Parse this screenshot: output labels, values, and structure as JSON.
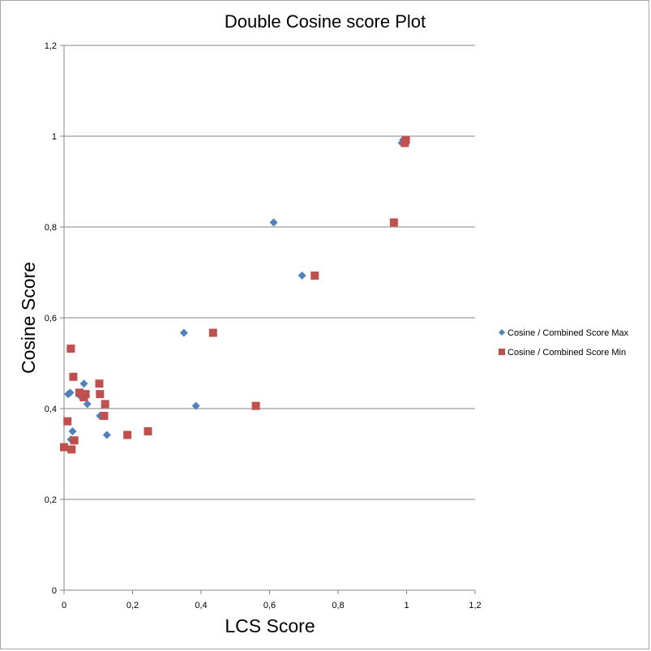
{
  "chart_data": {
    "type": "scatter",
    "title": "Double Cosine score Plot",
    "xlabel": "LCS Score",
    "ylabel": "Cosine Score",
    "xlim": [
      0,
      1.2
    ],
    "ylim": [
      0,
      1.2
    ],
    "xticks": [
      "0",
      "0,2",
      "0,4",
      "0,6",
      "0,8",
      "1",
      "1,2"
    ],
    "yticks": [
      "0",
      "0,2",
      "0,4",
      "0,6",
      "0,8",
      "1",
      "1,2"
    ],
    "grid": "horizontal",
    "legend_position": "right",
    "series": [
      {
        "name": "Cosine / Combined Score Max",
        "marker": "diamond",
        "color": "#4f81bd",
        "points": [
          {
            "x": 0.986,
            "y": 0.985
          },
          {
            "x": 0.99,
            "y": 0.992
          },
          {
            "x": 0.612,
            "y": 0.81
          },
          {
            "x": 0.695,
            "y": 0.693
          },
          {
            "x": 0.35,
            "y": 0.567
          },
          {
            "x": 0.385,
            "y": 0.406
          },
          {
            "x": 0.018,
            "y": 0.532
          },
          {
            "x": 0.012,
            "y": 0.432
          },
          {
            "x": 0.018,
            "y": 0.435
          },
          {
            "x": 0.058,
            "y": 0.455
          },
          {
            "x": 0.048,
            "y": 0.427
          },
          {
            "x": 0.068,
            "y": 0.41
          },
          {
            "x": 0.105,
            "y": 0.384
          },
          {
            "x": 0.125,
            "y": 0.342
          },
          {
            "x": 0.025,
            "y": 0.35
          },
          {
            "x": 0.02,
            "y": 0.332
          },
          {
            "x": 0.005,
            "y": 0.315
          }
        ]
      },
      {
        "name": "Cosine / Combined Score Min",
        "marker": "square",
        "color": "#c0504d",
        "points": [
          {
            "x": 0.995,
            "y": 0.985
          },
          {
            "x": 0.998,
            "y": 0.992
          },
          {
            "x": 0.963,
            "y": 0.81
          },
          {
            "x": 0.732,
            "y": 0.693
          },
          {
            "x": 0.435,
            "y": 0.567
          },
          {
            "x": 0.56,
            "y": 0.406
          },
          {
            "x": 0.02,
            "y": 0.532
          },
          {
            "x": 0.027,
            "y": 0.47
          },
          {
            "x": 0.103,
            "y": 0.455
          },
          {
            "x": 0.105,
            "y": 0.432
          },
          {
            "x": 0.045,
            "y": 0.435
          },
          {
            "x": 0.063,
            "y": 0.432
          },
          {
            "x": 0.058,
            "y": 0.425
          },
          {
            "x": 0.12,
            "y": 0.41
          },
          {
            "x": 0.117,
            "y": 0.384
          },
          {
            "x": 0.185,
            "y": 0.342
          },
          {
            "x": 0.245,
            "y": 0.35
          },
          {
            "x": 0.01,
            "y": 0.372
          },
          {
            "x": 0.03,
            "y": 0.33
          },
          {
            "x": 0.0,
            "y": 0.315
          },
          {
            "x": 0.022,
            "y": 0.31
          }
        ]
      }
    ]
  }
}
